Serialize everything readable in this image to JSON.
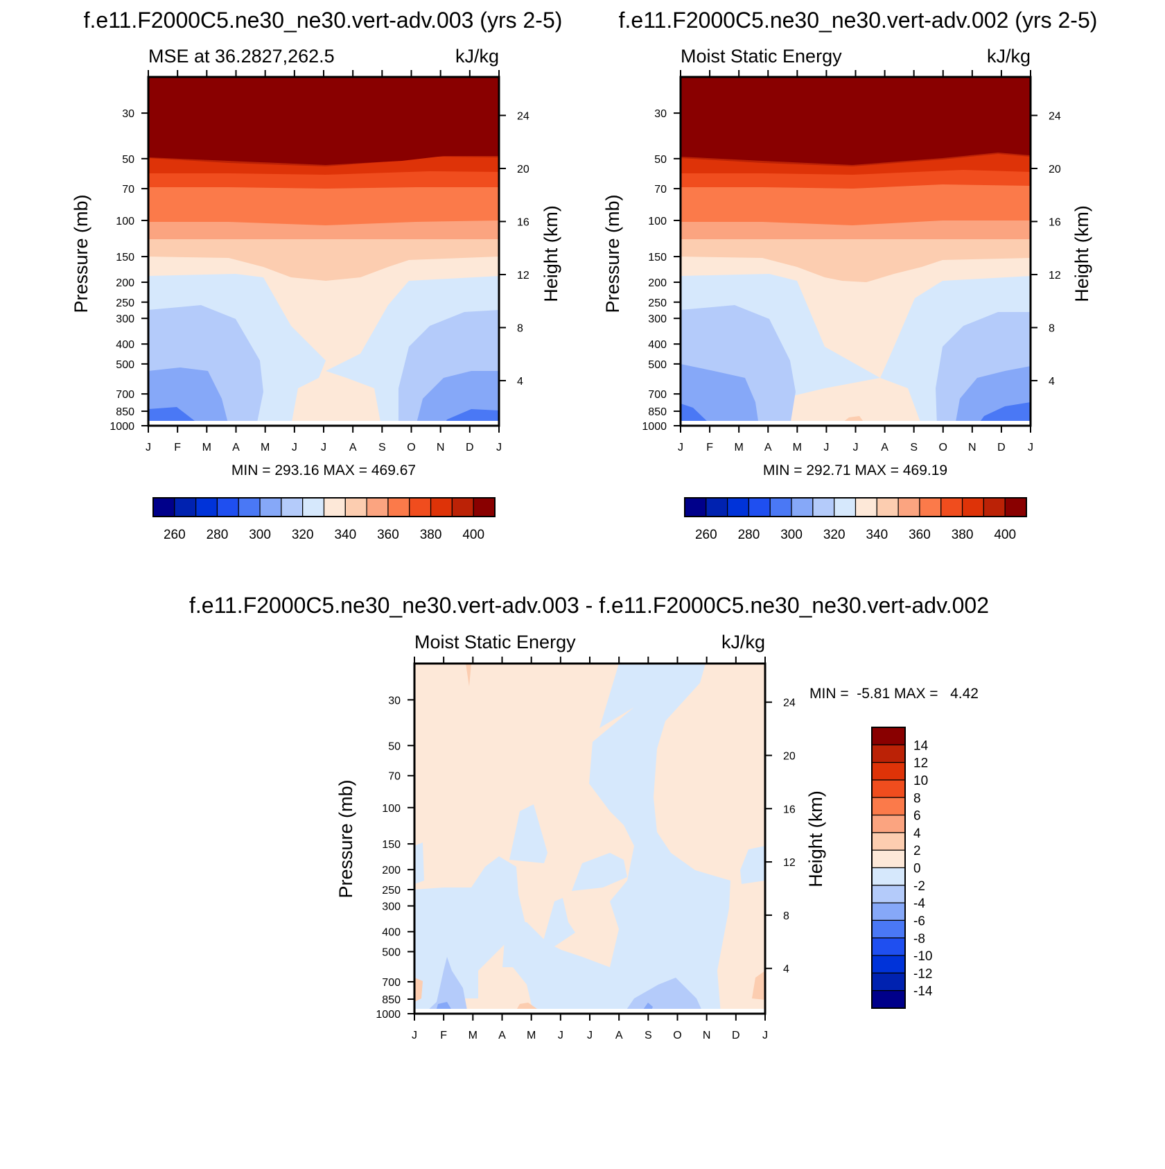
{
  "titles": {
    "panel_a": "f.e11.F2000C5.ne30_ne30.vert-adv.003 (yrs 2-5)",
    "panel_b": "f.e11.F2000C5.ne30_ne30.vert-adv.002 (yrs 2-5)",
    "panel_diff": "f.e11.F2000C5.ne30_ne30.vert-adv.003 - f.e11.F2000C5.ne30_ne30.vert-adv.002"
  },
  "colors": {
    "main_levels": [
      "#00008a",
      "#0022b0",
      "#0033d9",
      "#1f4ff0",
      "#4a78f5",
      "#86a8f8",
      "#b4cbfa",
      "#d6e8fc",
      "#fde8d8",
      "#fccdb0",
      "#fba480",
      "#fb7a4a",
      "#f04d1e",
      "#de3308",
      "#bb2206",
      "#890000"
    ],
    "diff_levels": [
      "#00008a",
      "#0022b0",
      "#0033d9",
      "#1f4ff0",
      "#4a78f5",
      "#86a8f8",
      "#b4cbfa",
      "#d6e8fc",
      "#fde8d8",
      "#fccdb0",
      "#fba480",
      "#fb7a4a",
      "#f04d1e",
      "#de3308",
      "#bb2206",
      "#890000"
    ]
  },
  "chart_data": [
    {
      "id": "panel_a",
      "type": "heatmap",
      "subtitle_left": "MSE at 36.2827,262.5",
      "subtitle_right": "kJ/kg",
      "ylabel": "Pressure (mb)",
      "ylabel_right": "Height (km)",
      "x_ticklabels": [
        "J",
        "F",
        "M",
        "A",
        "M",
        "J",
        "J",
        "A",
        "S",
        "O",
        "N",
        "D",
        "J"
      ],
      "y_ticklabels": [
        "30",
        "50",
        "70",
        "100",
        "150",
        "200",
        "250",
        "300",
        "400",
        "500",
        "700",
        "850",
        "1000"
      ],
      "y_right_ticklabels": [
        "24",
        "20",
        "16",
        "12",
        "8",
        "4"
      ],
      "min": 293.16,
      "max": 469.67,
      "stats_text": "MIN = 293.16 MAX = 469.67",
      "colorbar_labels": [
        "260",
        "280",
        "300",
        "320",
        "340",
        "360",
        "380",
        "400"
      ],
      "contour_levels": [
        250,
        260,
        270,
        280,
        290,
        300,
        310,
        320,
        330,
        340,
        350,
        360,
        370,
        380,
        390,
        400,
        410
      ]
    },
    {
      "id": "panel_b",
      "type": "heatmap",
      "subtitle_left": "Moist Static Energy",
      "subtitle_right": "kJ/kg",
      "ylabel": "Pressure (mb)",
      "ylabel_right": "Height (km)",
      "x_ticklabels": [
        "J",
        "F",
        "M",
        "A",
        "M",
        "J",
        "J",
        "A",
        "S",
        "O",
        "N",
        "D",
        "J"
      ],
      "y_ticklabels": [
        "30",
        "50",
        "70",
        "100",
        "150",
        "200",
        "250",
        "300",
        "400",
        "500",
        "700",
        "850",
        "1000"
      ],
      "y_right_ticklabels": [
        "24",
        "20",
        "16",
        "12",
        "8",
        "4"
      ],
      "min": 292.71,
      "max": 469.19,
      "stats_text": "MIN = 292.71 MAX = 469.19",
      "colorbar_labels": [
        "260",
        "280",
        "300",
        "320",
        "340",
        "360",
        "380",
        "400"
      ],
      "contour_levels": [
        250,
        260,
        270,
        280,
        290,
        300,
        310,
        320,
        330,
        340,
        350,
        360,
        370,
        380,
        390,
        400,
        410
      ]
    },
    {
      "id": "panel_diff",
      "type": "heatmap",
      "subtitle_left": "Moist Static Energy",
      "subtitle_right": "kJ/kg",
      "ylabel": "Pressure (mb)",
      "ylabel_right": "Height (km)",
      "x_ticklabels": [
        "J",
        "F",
        "M",
        "A",
        "M",
        "J",
        "J",
        "A",
        "S",
        "O",
        "N",
        "D",
        "J"
      ],
      "y_ticklabels": [
        "30",
        "50",
        "70",
        "100",
        "150",
        "200",
        "250",
        "300",
        "400",
        "500",
        "700",
        "850",
        "1000"
      ],
      "y_right_ticklabels": [
        "24",
        "20",
        "16",
        "12",
        "8",
        "4"
      ],
      "min": -5.81,
      "max": 4.42,
      "stats_text": "MIN =  -5.81 MAX =   4.42",
      "colorbar_labels": [
        "14",
        "12",
        "10",
        "8",
        "6",
        "4",
        "2",
        "0",
        "-2",
        "-4",
        "-6",
        "-8",
        "-10",
        "-12",
        "-14"
      ],
      "contour_levels": [
        -16,
        -14,
        -12,
        -10,
        -8,
        -6,
        -4,
        -2,
        0,
        2,
        4,
        6,
        8,
        10,
        12,
        14,
        16
      ]
    }
  ]
}
